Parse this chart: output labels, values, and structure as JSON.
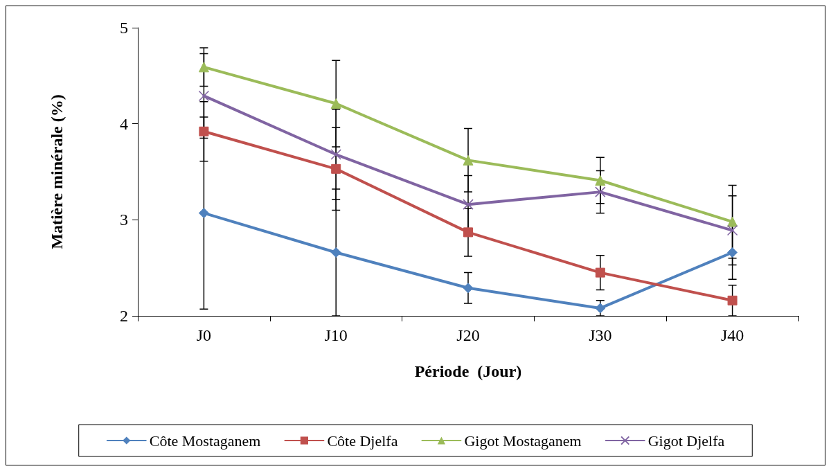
{
  "chart_data": {
    "type": "line",
    "xlabel": "Période  (Jour)",
    "ylabel": "Matière minérale (%)",
    "categories": [
      "J0",
      "J10",
      "J20",
      "J30",
      "J40"
    ],
    "ylim": [
      2,
      5
    ],
    "yticks": [
      2,
      3,
      4,
      5
    ],
    "grid": false,
    "legend": "bottom",
    "series": [
      {
        "name": "Côte Mostaganem",
        "color": "#4f81bd",
        "marker": "diamond",
        "values": [
          3.07,
          2.66,
          2.29,
          2.08,
          2.66
        ],
        "errors": [
          1.0,
          0.66,
          0.16,
          0.08,
          0.28
        ]
      },
      {
        "name": "Côte Djelfa",
        "color": "#c0504d",
        "marker": "square",
        "values": [
          3.92,
          3.53,
          2.87,
          2.45,
          2.16
        ],
        "errors": [
          0.31,
          0.43,
          0.25,
          0.18,
          0.16
        ]
      },
      {
        "name": "Gigot Mostaganem",
        "color": "#9bbb59",
        "marker": "triangle",
        "values": [
          4.59,
          4.21,
          3.62,
          3.41,
          2.98
        ],
        "errors": [
          0.2,
          0.45,
          0.33,
          0.24,
          0.38
        ]
      },
      {
        "name": "Gigot Djelfa",
        "color": "#8064a2",
        "marker": "cross",
        "values": [
          4.29,
          3.68,
          3.16,
          3.29,
          2.89
        ],
        "errors": [
          0.44,
          0.47,
          0.3,
          0.22,
          0.36
        ]
      }
    ]
  }
}
